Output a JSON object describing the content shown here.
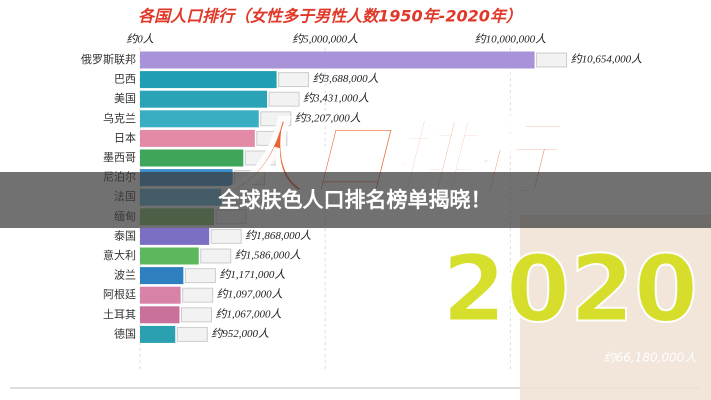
{
  "chart_data": {
    "type": "hbar",
    "title": "各国人口排行（女性多于男性人数1950年-2020年）",
    "categories": [
      "俄罗斯联邦",
      "巴西",
      "美国",
      "乌克兰",
      "日本",
      "墨西哥",
      "尼泊尔",
      "法国",
      "缅甸",
      "泰国",
      "意大利",
      "波兰",
      "阿根廷",
      "土耳其",
      "德国"
    ],
    "values": [
      10654000,
      3688000,
      3431000,
      3207000,
      3100000,
      2790000,
      2500000,
      2200000,
      2000000,
      1868000,
      1586000,
      1171000,
      1097000,
      1067000,
      952000
    ],
    "value_labels": [
      "约10,654,000人",
      "约3,688,000人",
      "约3,431,000人",
      "约3,207,000人",
      null,
      null,
      null,
      null,
      null,
      "约1,868,000人",
      "约1,586,000人",
      "约1,171,000人",
      "约1,097,000人",
      "约1,067,000人",
      "约952,000人"
    ],
    "colors": [
      "#a993d8",
      "#1f9fb1",
      "#2aa3b6",
      "#39adc2",
      "#e28aa6",
      "#3fa55a",
      "#3a8fc9",
      "#5fb3d4",
      "#7fbf6a",
      "#7b6fc4",
      "#5cb85c",
      "#2e7fc0",
      "#d782a6",
      "#c9719b",
      "#2aa0b0"
    ],
    "xlim": [
      0,
      10800000
    ],
    "xticks": [
      {
        "value": 0,
        "label": "约0人"
      },
      {
        "value": 5000000,
        "label": "约5,000,000人"
      },
      {
        "value": 10000000,
        "label": "约10,000,000人"
      }
    ],
    "grid": true
  },
  "overlay": {
    "banner": "全球肤色人口排名榜单揭晓！",
    "big_text": "人口排行",
    "year_text": "2020",
    "corner_label": "约66,180,000人"
  }
}
